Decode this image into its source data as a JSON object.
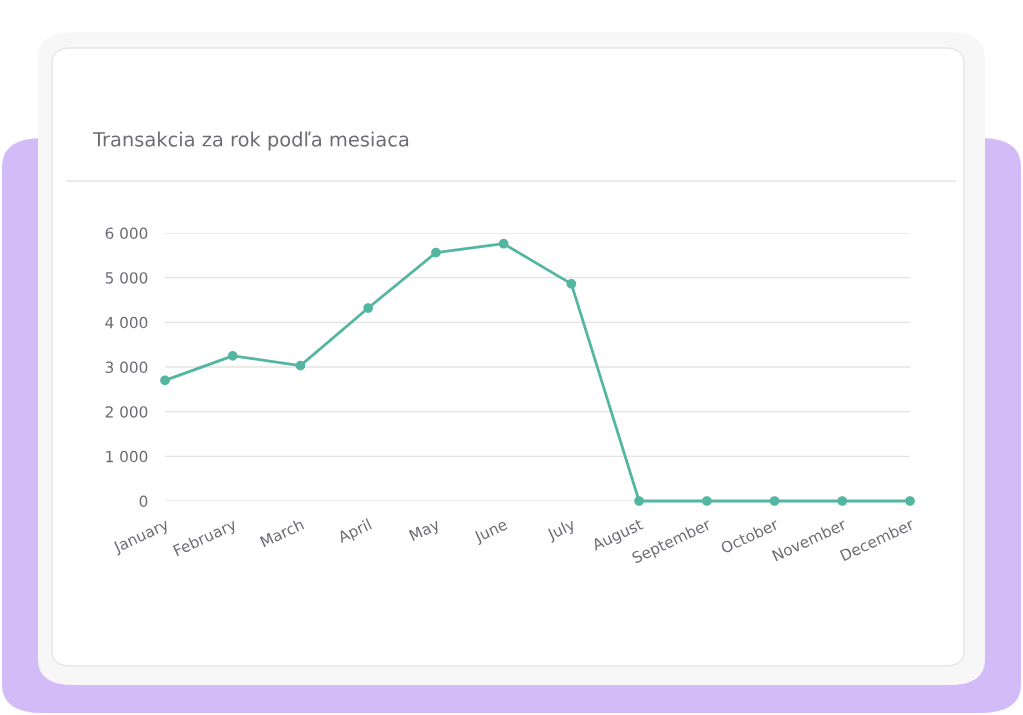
{
  "chart_data": {
    "type": "line",
    "title": "Transakcia za rok podľa mesiaca",
    "categories": [
      "January",
      "February",
      "March",
      "April",
      "May",
      "June",
      "July",
      "August",
      "September",
      "October",
      "November",
      "December"
    ],
    "series": [
      {
        "color": "#52b6a0",
        "values": [
          2700,
          3250,
          3030,
          4320,
          5560,
          5760,
          4860,
          0,
          0,
          0,
          0,
          0
        ]
      }
    ],
    "ylim": [
      0,
      6000
    ],
    "yticks": [
      {
        "value": 0,
        "label": "0"
      },
      {
        "value": 1000,
        "label": "1 000"
      },
      {
        "value": 2000,
        "label": "2 000"
      },
      {
        "value": 3000,
        "label": "3 000"
      },
      {
        "value": 4000,
        "label": "4 000"
      },
      {
        "value": 5000,
        "label": "5 000"
      },
      {
        "value": 6000,
        "label": "6 000"
      }
    ],
    "grid": "y",
    "marker": "circle",
    "line_style": "solid",
    "legend": false
  }
}
